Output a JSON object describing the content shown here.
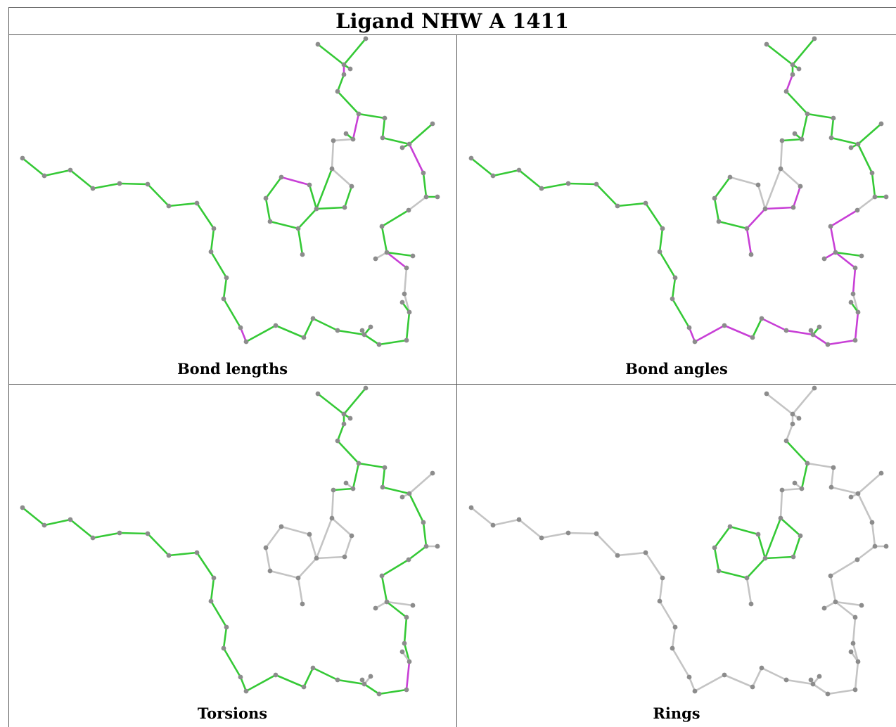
{
  "title": "Ligand NHW A 1411",
  "colors": {
    "good": "#35c936",
    "outlier": "#c83fd6",
    "neutral": "#c4c4c4",
    "atom": "#8c8c8c"
  },
  "panels": [
    {
      "id": "bond-lengths",
      "caption": "Bond lengths"
    },
    {
      "id": "bond-angles",
      "caption": "Bond angles"
    },
    {
      "id": "torsions",
      "caption": "Torsions"
    },
    {
      "id": "rings",
      "caption": "Rings"
    }
  ]
}
